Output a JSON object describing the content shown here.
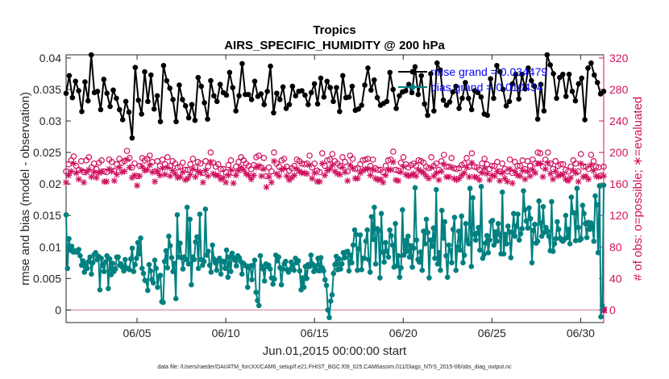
{
  "chart_data": {
    "type": "line",
    "title": "Tropics",
    "subtitle": "AIRS_SPECIFIC_HUMIDITY @ 200 hPa",
    "xlabel": "Jun.01,2015 00:00:00 start",
    "ylabel": "rmse and bias (model - observation)",
    "ylabel_right": "# of obs: o=possible; ∗=evaluated",
    "xlim": [
      1,
      31.3
    ],
    "ylim": [
      -0.002,
      0.0405
    ],
    "ylim_right": [
      -16,
      324
    ],
    "x_ticks": [
      5,
      10,
      15,
      20,
      25,
      30
    ],
    "x_tick_labels": [
      "06/05",
      "06/10",
      "06/15",
      "06/20",
      "06/25",
      "06/30"
    ],
    "y_ticks": [
      0,
      0.005,
      0.01,
      0.015,
      0.02,
      0.025,
      0.03,
      0.035,
      0.04
    ],
    "y_tick_labels": [
      "0",
      "0.005",
      "0.01",
      "0.015",
      "0.02",
      "0.025",
      "0.03",
      "0.035",
      "0.04"
    ],
    "y_right_ticks": [
      0,
      40,
      80,
      120,
      160,
      200,
      240,
      280,
      320
    ],
    "y_right_tick_labels": [
      "0",
      "40",
      "80",
      "120",
      "160",
      "200",
      "240",
      "280",
      "320"
    ],
    "legend": [
      "rmse grand     = 0.034479",
      "bias grand     = 0.010454"
    ],
    "legend_location": "top-right",
    "series": [
      {
        "name": "rmse",
        "color": "#000000",
        "marker": "filled-circle",
        "values": [
          0.0344,
          0.0372,
          0.0337,
          0.0363,
          0.0348,
          0.0315,
          0.0362,
          0.0332,
          0.0405,
          0.0345,
          0.0347,
          0.0318,
          0.0366,
          0.0344,
          0.0323,
          0.0349,
          0.0336,
          0.0318,
          0.0302,
          0.0331,
          0.0314,
          0.0273,
          0.0385,
          0.0333,
          0.0311,
          0.0378,
          0.0331,
          0.0373,
          0.0319,
          0.034,
          0.0299,
          0.0388,
          0.0364,
          0.0352,
          0.0334,
          0.0299,
          0.0357,
          0.0334,
          0.0324,
          0.0305,
          0.0326,
          0.0301,
          0.0369,
          0.0355,
          0.0329,
          0.0303,
          0.0364,
          0.034,
          0.0331,
          0.0358,
          0.0345,
          0.0341,
          0.0377,
          0.0353,
          0.0316,
          0.034,
          0.0391,
          0.0342,
          0.0342,
          0.0334,
          0.0363,
          0.0339,
          0.0343,
          0.0326,
          0.0347,
          0.0387,
          0.0313,
          0.0344,
          0.0334,
          0.0354,
          0.032,
          0.0326,
          0.0355,
          0.034,
          0.0347,
          0.0348,
          0.0341,
          0.0326,
          0.0345,
          0.0359,
          0.0327,
          0.0368,
          0.0338,
          0.0363,
          0.0353,
          0.0331,
          0.0353,
          0.0315,
          0.0372,
          0.0337,
          0.0338,
          0.0355,
          0.0317,
          0.0319,
          0.0325,
          0.0357,
          0.0384,
          0.0349,
          0.0365,
          0.0337,
          0.0325,
          0.0328,
          0.0331,
          0.0377,
          0.035,
          0.032,
          0.034,
          0.0346,
          0.0348,
          0.0358,
          0.0345,
          0.0386,
          0.0342,
          0.0372,
          0.0327,
          0.0309,
          0.0375,
          0.0316,
          0.0392,
          0.0381,
          0.0333,
          0.0325,
          0.033,
          0.0346,
          0.0355,
          0.032,
          0.0336,
          0.0361,
          0.0336,
          0.0318,
          0.0348,
          0.0345,
          0.0338,
          0.0311,
          0.0309,
          0.0367,
          0.0336,
          0.0388,
          0.0378,
          0.035,
          0.0324,
          0.0331,
          0.0359,
          0.0374,
          0.0335,
          0.0374,
          0.0351,
          0.0384,
          0.0364,
          0.0355,
          0.0303,
          0.0358,
          0.0316,
          0.0405,
          0.0389,
          0.0375,
          0.0336,
          0.0369,
          0.0374,
          0.0339,
          0.0374,
          0.0347,
          0.0332,
          0.0359,
          0.0368,
          0.0302,
          0.0384,
          0.0392,
          0.0373,
          0.0361,
          0.0343,
          0.0347
        ]
      },
      {
        "name": "bias",
        "color": "#008080",
        "marker": "filled-circle",
        "values": [
          0.0151,
          0.0066,
          0.0113,
          0.0095,
          0.0101,
          0.0092,
          0.0094,
          0.0092,
          0.0092,
          0.0096,
          0.0086,
          0.0071,
          0.0078,
          0.006,
          0.0073,
          0.0066,
          0.0077,
          0.0084,
          0.0057,
          0.0075,
          0.0088,
          0.0091,
          0.008,
          0.0085,
          0.0032,
          0.0082,
          0.0071,
          0.0061,
          0.0076,
          0.0086,
          0.0034,
          0.0081,
          0.0056,
          0.0074,
          0.0061,
          0.0065,
          0.0084,
          0.0084,
          0.0071,
          0.0073,
          0.0068,
          0.0062,
          0.008,
          0.0066,
          0.0066,
          0.0064,
          0.0081,
          0.0098,
          0.0061,
          0.0072,
          0.0082,
          0.0107,
          0.0089,
          0.0114,
          0.0066,
          0.0058,
          0.0047,
          0.0046,
          0.0031,
          0.0072,
          0.0062,
          0.0048,
          0.0043,
          0.0079,
          0.0066,
          0.0036,
          0.0053,
          0.0055,
          0.0013,
          0.0012,
          0.0077,
          0.0094,
          0.0067,
          0.0117,
          0.0102,
          0.0083,
          0.0061,
          0.0074,
          0.0018,
          0.0151,
          0.0084,
          0.0106,
          0.0083,
          0.0065,
          0.0084,
          0.008,
          0.0163,
          0.0073,
          0.0144,
          0.004,
          0.0084,
          0.008,
          0.0108,
          0.0116,
          0.0066,
          0.0152,
          0.008,
          0.0071,
          0.0077,
          0.016,
          0.0087,
          0.0093,
          0.0071,
          0.006,
          0.0103,
          0.0081,
          0.0075,
          0.0063,
          0.0078,
          0.0082,
          0.0057,
          0.0077,
          0.0077,
          0.0066,
          0.0095,
          0.0052,
          0.0084,
          0.0061,
          0.009,
          0.0083,
          0.0079,
          0.007,
          0.0086,
          0.0083,
          0.0077,
          0.0057,
          0.0074,
          0.0071,
          0.007,
          0.0036,
          0.0067,
          0.007,
          0.0048,
          0.0071,
          0.0079,
          0.0028,
          0.0015,
          0.0007,
          0.0086,
          0.0069,
          0.0065,
          0.0046,
          0.0073,
          0.0069,
          0.0071,
          0.0065,
          0.0051,
          0.0041,
          0.0049,
          0.0087,
          0.0078,
          0.0084,
          0.0067,
          0.004,
          0.0065,
          0.0073,
          0.0077,
          0.0064,
          0.006,
          0.0064,
          0.0076,
          0.0071,
          0.0063,
          0.0082,
          0.0075,
          0.0078,
          0.0062,
          0.0032,
          0.0051,
          0.0036,
          0.0069,
          0.005,
          0.0072,
          0.0069,
          0.0087,
          0.0073,
          0.0061,
          0.007,
          0.0063,
          0.0082,
          0.0062,
          0.0083,
          0.0067,
          0.0062,
          0.0048,
          0.0039,
          0.0,
          -0.0012,
          0.0014,
          0.0024,
          0.0058,
          0.0072,
          0.0085,
          0.0064,
          0.0081,
          0.0065,
          0.0073,
          0.0091,
          0.0083,
          0.0092,
          0.0093,
          0.0062,
          0.0087,
          0.0075,
          0.0103,
          0.0127,
          0.012,
          0.0063,
          0.0097,
          0.0119,
          0.0064,
          0.0082,
          0.0082,
          0.0109,
          0.0127,
          0.008,
          0.006,
          0.0148,
          0.0112,
          0.0163,
          0.0073,
          0.0129,
          0.0126,
          0.0051,
          0.0153,
          0.0092,
          0.0076,
          0.0107,
          0.0093,
          0.0084,
          0.0127,
          0.0118,
          0.0103,
          0.0068,
          0.0137,
          0.007,
          0.0086,
          0.0052,
          0.0067,
          0.0159,
          0.0087,
          0.011,
          0.0093,
          0.0117,
          0.0084,
          0.0102,
          0.0068,
          0.0098,
          0.0194,
          0.0111,
          0.008,
          0.0076,
          0.0092,
          0.0063,
          0.0125,
          0.0105,
          0.0144,
          0.0123,
          0.0051,
          0.0111,
          0.0101,
          0.013,
          0.0082,
          0.0191,
          0.0073,
          0.0091,
          0.0063,
          0.0158,
          0.0114,
          0.014,
          0.0086,
          0.0052,
          0.0103,
          0.0094,
          0.0075,
          0.0128,
          0.0147,
          0.0063,
          0.01,
          0.0125,
          0.0095,
          0.0149,
          0.0075,
          0.0087,
          0.0137,
          0.0111,
          0.0105,
          0.0193,
          0.0069,
          0.0178,
          0.012,
          0.0111,
          0.0122,
          0.0131,
          0.0095,
          0.0196,
          0.0082,
          0.0088,
          0.0106,
          0.0118,
          0.0091,
          0.0111,
          0.014,
          0.0142,
          0.0103,
          0.0124,
          0.0109,
          0.0137,
          0.012,
          0.0089,
          0.0187,
          0.0089,
          0.012,
          0.0105,
          0.0133,
          0.0124,
          0.0083,
          0.0123,
          0.0153,
          0.0117,
          0.0133,
          0.0152,
          0.0111,
          0.0121,
          0.0129,
          0.0189,
          0.0159,
          0.0141,
          0.013,
          0.0162,
          0.0145,
          0.0075,
          0.0126,
          0.0136,
          0.0106,
          0.0109,
          0.0173,
          0.0138,
          0.0117,
          0.0164,
          0.0123,
          0.0131,
          0.0125,
          0.0117,
          0.0094,
          0.0172,
          0.0093,
          0.0105,
          0.0113,
          0.014,
          0.0128,
          0.0114,
          0.0111,
          0.0109,
          0.0112,
          0.015,
          0.0115,
          0.0128,
          0.0105,
          0.0179,
          0.0155,
          0.0154,
          0.011,
          0.0193,
          0.0131,
          0.0111,
          0.0113,
          0.0166,
          0.0153,
          0.0137,
          0.0115,
          0.0139,
          0.0128,
          0.0138,
          0.0132,
          0.0109,
          0.0181,
          0.0167,
          0.0091,
          0.0197,
          -0.0011,
          0.0007,
          0.0198
        ]
      },
      {
        "name": "obs possible",
        "axis": "right",
        "color": "#d0115f",
        "marker": "open-circle",
        "values": [
          176,
          185,
          190,
          195,
          183,
          178,
          189,
          175,
          190,
          194,
          181,
          186,
          179,
          187,
          190,
          176,
          175,
          191,
          188,
          177,
          185,
          192,
          187,
          189,
          202,
          193,
          181,
          186,
          170,
          183,
          193,
          190,
          192,
          196,
          188,
          176,
          189,
          183,
          191,
          185,
          194,
          183,
          189,
          186,
          181,
          182,
          187,
          178,
          178,
          185,
          192,
          181,
          188,
          186,
          174,
          189,
          182,
          200,
          187,
          182,
          185,
          179,
          179,
          175,
          184,
          190,
          174,
          182,
          188,
          194,
          190,
          186,
          183,
          179,
          184,
          194,
          196,
          181,
          193,
          170,
          181,
          176,
          200,
          186,
          182,
          190,
          192,
          182,
          177,
          180,
          183,
          191,
          189,
          186,
          185,
          186,
          196,
          181,
          186,
          177,
          175,
          199,
          183,
          190,
          191,
          198,
          189,
          186,
          183,
          194,
          188,
          176,
          196,
          192,
          179,
          180,
          185,
          190,
          191,
          192,
          183,
          191,
          180,
          178,
          178,
          175,
          183,
          190,
          191,
          201,
          178,
          177,
          187,
          194,
          185,
          181,
          184,
          186,
          183,
          190,
          189,
          187,
          182,
          180,
          194,
          183,
          186,
          178,
          189,
          197,
          182,
          182,
          193,
          180,
          179,
          180,
          184,
          186,
          193,
          182,
          199,
          182,
          181,
          178,
          186,
          192,
          185,
          179,
          183,
          183,
          188,
          176,
          186,
          179,
          176,
          191,
          174,
          188,
          183,
          183,
          190,
          179,
          189,
          183,
          191,
          186,
          200,
          199,
          182,
          191,
          200,
          186,
          179,
          189,
          183,
          185,
          185,
          178,
          176,
          182,
          190,
          186,
          176,
          198,
          182,
          182,
          179,
          197,
          189,
          182,
          181,
          171,
          182
        ]
      },
      {
        "name": "obs evaluated",
        "axis": "right",
        "color": "#d0115f",
        "marker": "asterisk",
        "values": [
          162,
          171,
          176,
          186,
          174,
          166,
          177,
          162,
          175,
          178,
          169,
          175,
          168,
          174,
          176,
          163,
          163,
          179,
          176,
          164,
          172,
          181,
          175,
          176,
          191,
          181,
          168,
          171,
          158,
          170,
          182,
          177,
          178,
          184,
          175,
          163,
          176,
          171,
          180,
          172,
          181,
          170,
          177,
          173,
          168,
          169,
          175,
          165,
          167,
          172,
          179,
          169,
          176,
          174,
          162,
          177,
          170,
          188,
          173,
          171,
          171,
          166,
          168,
          162,
          171,
          178,
          161,
          171,
          177,
          181,
          178,
          173,
          171,
          166,
          171,
          181,
          183,
          170,
          179,
          156,
          169,
          162,
          189,
          173,
          170,
          178,
          180,
          170,
          165,
          168,
          171,
          179,
          176,
          174,
          174,
          173,
          184,
          167,
          174,
          163,
          163,
          186,
          171,
          177,
          179,
          184,
          176,
          173,
          172,
          181,
          175,
          164,
          184,
          180,
          167,
          167,
          174,
          177,
          179,
          179,
          171,
          178,
          167,
          165,
          166,
          162,
          171,
          178,
          178,
          188,
          165,
          164,
          175,
          182,
          172,
          170,
          171,
          173,
          170,
          178,
          176,
          174,
          170,
          167,
          181,
          170,
          174,
          165,
          176,
          185,
          169,
          169,
          181,
          167,
          165,
          167,
          171,
          174,
          181,
          169,
          187,
          169,
          168,
          165,
          174,
          180,
          173,
          165,
          171,
          170,
          176,
          164,
          174,
          167,
          163,
          179,
          161,
          176,
          171,
          170,
          177,
          166,
          176,
          170,
          178,
          174,
          186,
          186,
          169,
          179,
          187,
          173,
          166,
          176,
          170,
          172,
          172,
          166,
          164,
          168,
          177,
          174,
          163,
          186,
          169,
          170,
          166,
          184,
          177,
          170,
          169,
          158,
          170
        ]
      }
    ],
    "footnote": "data file: /Users/raeder/DAI/ATM_forcXX/CAM6_setup/f.e21.FHIST_BGC.f09_025.CAM6assim.011/Diags_NTrS_2015-06/obs_diag_output.nc"
  }
}
